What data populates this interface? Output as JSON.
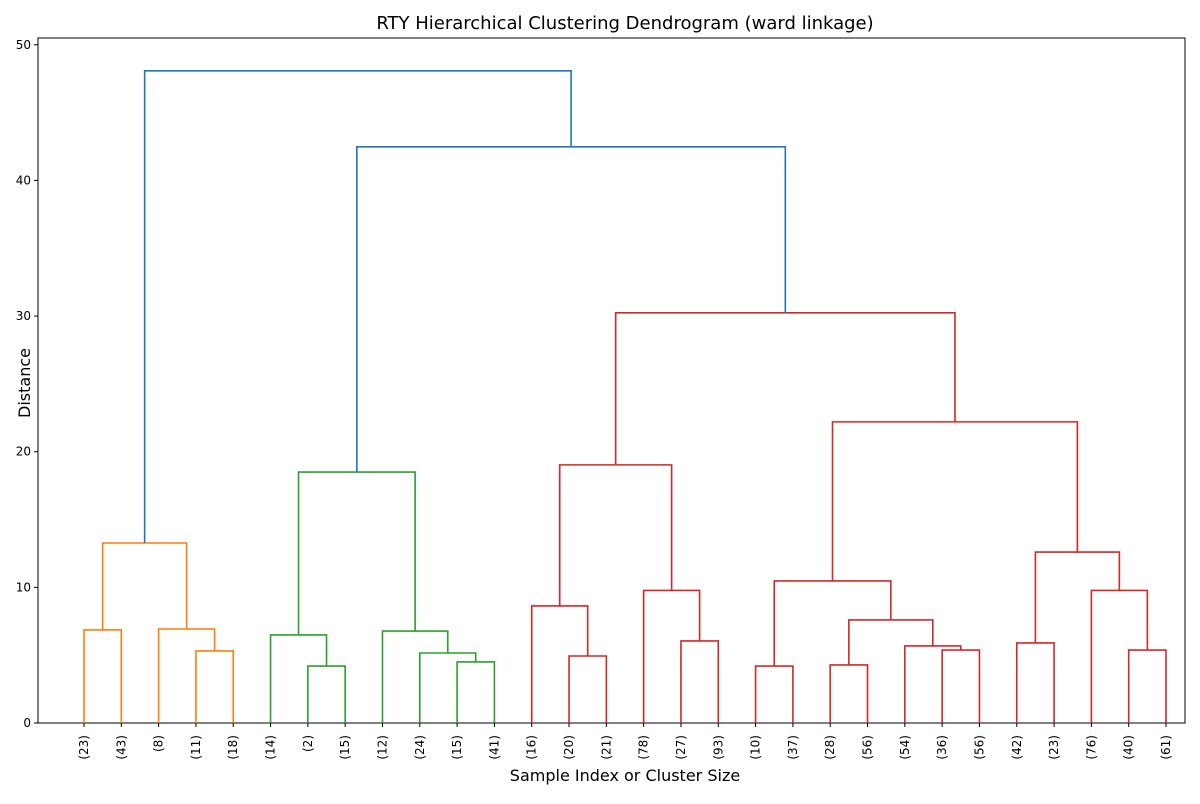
{
  "chart_data": {
    "type": "dendrogram",
    "title": "RTY Hierarchical Clustering Dendrogram (ward linkage)",
    "x_label": "Sample Index or Cluster Size",
    "y_label": "Distance",
    "leaves": [
      "(23)",
      "(43)",
      "(8)",
      "(11)",
      "(18)",
      "(14)",
      "(2)",
      "(15)",
      "(12)",
      "(24)",
      "(15)",
      "(41)",
      "(16)",
      "(20)",
      "(21)",
      "(78)",
      "(27)",
      "(93)",
      "(10)",
      "(37)",
      "(28)",
      "(56)",
      "(54)",
      "(36)",
      "(56)",
      "(42)",
      "(23)",
      "(76)",
      "(40)",
      "(61)"
    ],
    "merges": [
      {
        "children": [
          0,
          1
        ],
        "height": 6.86,
        "color": "#ff7f0e"
      },
      {
        "children": [
          3,
          4
        ],
        "height": 5.31,
        "color": "#ff7f0e"
      },
      {
        "children": [
          2,
          31
        ],
        "height": 6.93,
        "color": "#ff7f0e"
      },
      {
        "children": [
          30,
          32
        ],
        "height": 13.27,
        "color": "#ff7f0e"
      },
      {
        "children": [
          6,
          7
        ],
        "height": 4.2,
        "color": "#2ca02c"
      },
      {
        "children": [
          5,
          34
        ],
        "height": 6.49,
        "color": "#2ca02c"
      },
      {
        "children": [
          10,
          11
        ],
        "height": 4.5,
        "color": "#2ca02c"
      },
      {
        "children": [
          9,
          36
        ],
        "height": 5.16,
        "color": "#2ca02c"
      },
      {
        "children": [
          8,
          37
        ],
        "height": 6.78,
        "color": "#2ca02c"
      },
      {
        "children": [
          35,
          38
        ],
        "height": 18.5,
        "color": "#2ca02c"
      },
      {
        "children": [
          13,
          14
        ],
        "height": 4.94,
        "color": "#d62728"
      },
      {
        "children": [
          12,
          40
        ],
        "height": 8.63,
        "color": "#d62728"
      },
      {
        "children": [
          16,
          17
        ],
        "height": 6.05,
        "color": "#d62728"
      },
      {
        "children": [
          15,
          42
        ],
        "height": 9.77,
        "color": "#d62728"
      },
      {
        "children": [
          41,
          43
        ],
        "height": 19.03,
        "color": "#d62728"
      },
      {
        "children": [
          18,
          19
        ],
        "height": 4.2,
        "color": "#d62728"
      },
      {
        "children": [
          20,
          21
        ],
        "height": 4.28,
        "color": "#d62728"
      },
      {
        "children": [
          23,
          24
        ],
        "height": 5.38,
        "color": "#d62728"
      },
      {
        "children": [
          22,
          47
        ],
        "height": 5.68,
        "color": "#d62728"
      },
      {
        "children": [
          46,
          48
        ],
        "height": 7.6,
        "color": "#d62728"
      },
      {
        "children": [
          45,
          49
        ],
        "height": 10.47,
        "color": "#d62728"
      },
      {
        "children": [
          25,
          26
        ],
        "height": 5.9,
        "color": "#d62728"
      },
      {
        "children": [
          28,
          29
        ],
        "height": 5.38,
        "color": "#d62728"
      },
      {
        "children": [
          27,
          52
        ],
        "height": 9.77,
        "color": "#d62728"
      },
      {
        "children": [
          51,
          53
        ],
        "height": 12.6,
        "color": "#d62728"
      },
      {
        "children": [
          50,
          54
        ],
        "height": 22.2,
        "color": "#d62728"
      },
      {
        "children": [
          44,
          55
        ],
        "height": 30.24,
        "color": "#d62728"
      },
      {
        "children": [
          39,
          56
        ],
        "height": 42.48,
        "color": "#1f77b4"
      },
      {
        "children": [
          33,
          57
        ],
        "height": 48.08,
        "color": "#1f77b4"
      }
    ],
    "ylim": [
      0,
      50.5
    ],
    "yticks": [
      0,
      10,
      20,
      30,
      40,
      50
    ]
  }
}
